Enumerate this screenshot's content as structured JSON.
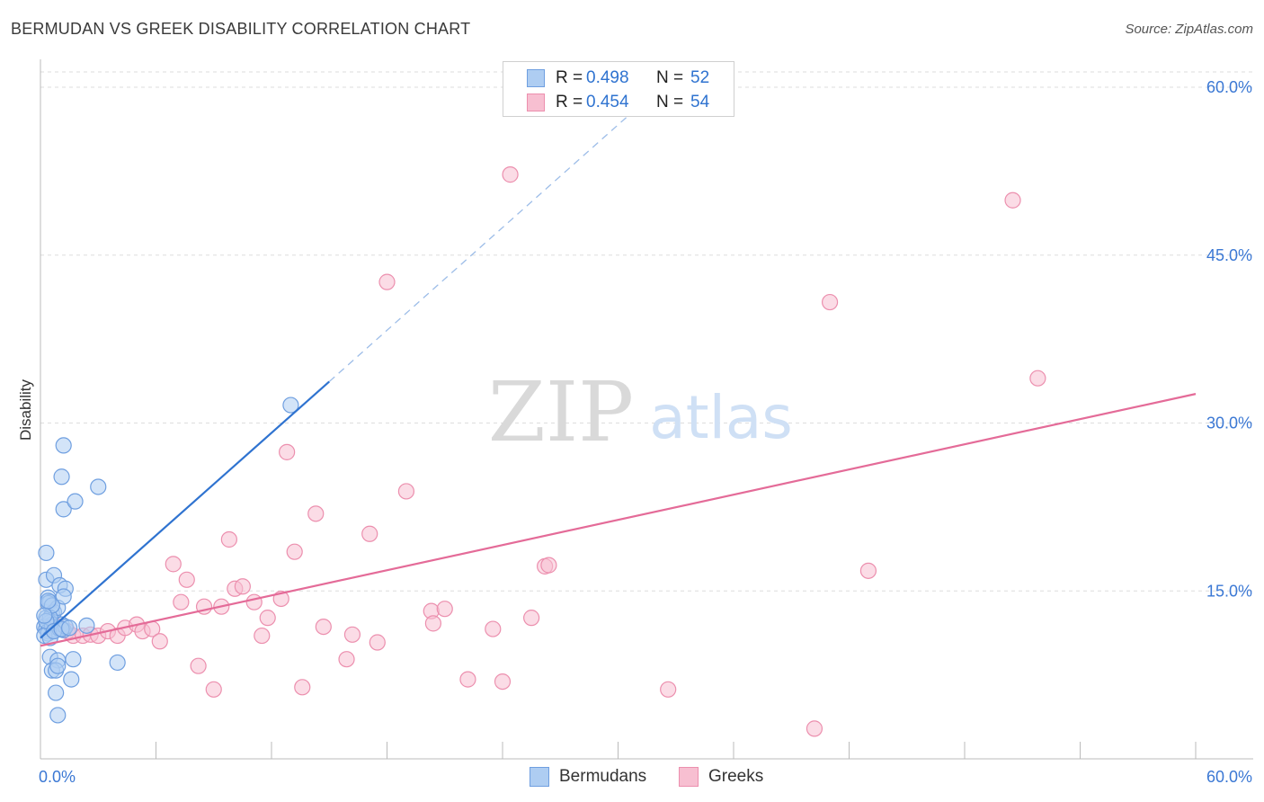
{
  "title": "BERMUDAN VS GREEK DISABILITY CORRELATION CHART",
  "source": "Source: ZipAtlas.com",
  "watermark": {
    "zip": "ZIP",
    "atlas": "atlas"
  },
  "legend": {
    "rows": [
      {
        "r_label": "R =",
        "r_value": "0.498",
        "n_label": "N =",
        "n_value": "52"
      },
      {
        "r_label": "R =",
        "r_value": "0.454",
        "n_label": "N =",
        "n_value": "54"
      }
    ]
  },
  "bottom_legend": {
    "series1": "Bermudans",
    "series2": "Greeks"
  },
  "colors": {
    "blue_fill": "#aecdf2",
    "blue_stroke": "#6f9fe0",
    "blue_line": "#2f73d0",
    "pink_fill": "#f7bfd1",
    "pink_stroke": "#ec8fae",
    "pink_line": "#e46b98",
    "tick_text": "#3b78d4",
    "grid": "#dddddd"
  },
  "chart_data": {
    "type": "scatter",
    "title": "BERMUDAN VS GREEK DISABILITY CORRELATION CHART",
    "xlabel": "",
    "ylabel": "Disability",
    "xlim": [
      0,
      60
    ],
    "ylim": [
      0,
      60
    ],
    "x_tick_labels": [
      "0.0%",
      "60.0%"
    ],
    "y_ticks": [
      15,
      30,
      45,
      60
    ],
    "y_tick_labels": [
      "15.0%",
      "30.0%",
      "45.0%",
      "60.0%"
    ],
    "grid": true,
    "series": [
      {
        "name": "Bermudans",
        "r": 0.498,
        "n": 52,
        "trend": {
          "x0": 0.0,
          "y0": 10.8,
          "x1": 15.0,
          "y1": 33.7,
          "dashed_to_x": 32.0,
          "dashed_to_y": 59.7
        },
        "points": [
          [
            0.3,
            18.4
          ],
          [
            0.3,
            16.0
          ],
          [
            0.4,
            14.4
          ],
          [
            0.5,
            14.0
          ],
          [
            0.4,
            13.9
          ],
          [
            0.6,
            13.0
          ],
          [
            0.7,
            13.1
          ],
          [
            0.3,
            12.6
          ],
          [
            0.5,
            12.2
          ],
          [
            0.6,
            12.0
          ],
          [
            0.2,
            11.8
          ],
          [
            0.3,
            11.6
          ],
          [
            0.4,
            11.4
          ],
          [
            0.4,
            11.2
          ],
          [
            0.6,
            11.8
          ],
          [
            0.8,
            11.5
          ],
          [
            0.2,
            11.0
          ],
          [
            0.5,
            10.8
          ],
          [
            0.9,
            13.5
          ],
          [
            1.0,
            11.6
          ],
          [
            1.1,
            12.0
          ],
          [
            1.2,
            11.5
          ],
          [
            1.3,
            11.8
          ],
          [
            0.7,
            16.4
          ],
          [
            1.0,
            15.5
          ],
          [
            1.3,
            15.2
          ],
          [
            1.2,
            14.5
          ],
          [
            1.1,
            25.2
          ],
          [
            1.2,
            22.3
          ],
          [
            1.2,
            28.0
          ],
          [
            1.8,
            23.0
          ],
          [
            3.0,
            24.3
          ],
          [
            2.4,
            11.9
          ],
          [
            0.5,
            9.1
          ],
          [
            0.9,
            8.8
          ],
          [
            1.7,
            8.9
          ],
          [
            0.6,
            7.9
          ],
          [
            0.8,
            7.9
          ],
          [
            0.9,
            8.3
          ],
          [
            1.6,
            7.1
          ],
          [
            0.8,
            5.9
          ],
          [
            0.9,
            3.9
          ],
          [
            4.0,
            8.6
          ],
          [
            13.0,
            31.6
          ],
          [
            0.5,
            12.6
          ],
          [
            0.6,
            13.7
          ],
          [
            0.3,
            12.3
          ],
          [
            0.2,
            12.8
          ],
          [
            0.7,
            11.4
          ],
          [
            1.1,
            11.6
          ],
          [
            1.5,
            11.7
          ],
          [
            0.4,
            14.1
          ]
        ]
      },
      {
        "name": "Greeks",
        "r": 0.454,
        "n": 54,
        "trend": {
          "x0": 0.0,
          "y0": 10.1,
          "x1": 60.0,
          "y1": 32.6
        },
        "points": [
          [
            0.9,
            11.8
          ],
          [
            1.4,
            11.4
          ],
          [
            1.7,
            11.0
          ],
          [
            2.2,
            11.0
          ],
          [
            2.6,
            11.1
          ],
          [
            3.0,
            11.0
          ],
          [
            3.5,
            11.4
          ],
          [
            4.0,
            11.0
          ],
          [
            4.4,
            11.7
          ],
          [
            5.0,
            12.0
          ],
          [
            5.3,
            11.4
          ],
          [
            5.8,
            11.6
          ],
          [
            6.2,
            10.5
          ],
          [
            6.9,
            17.4
          ],
          [
            7.3,
            14.0
          ],
          [
            7.6,
            16.0
          ],
          [
            8.2,
            8.3
          ],
          [
            8.5,
            13.6
          ],
          [
            9.0,
            6.2
          ],
          [
            9.8,
            19.6
          ],
          [
            10.1,
            15.2
          ],
          [
            10.5,
            15.4
          ],
          [
            11.1,
            14.0
          ],
          [
            11.5,
            11.0
          ],
          [
            11.8,
            12.6
          ],
          [
            12.5,
            14.3
          ],
          [
            12.8,
            27.4
          ],
          [
            13.2,
            18.5
          ],
          [
            13.6,
            6.4
          ],
          [
            14.3,
            21.9
          ],
          [
            14.7,
            11.8
          ],
          [
            15.9,
            8.9
          ],
          [
            16.2,
            11.1
          ],
          [
            17.1,
            20.1
          ],
          [
            17.5,
            10.4
          ],
          [
            18.0,
            42.6
          ],
          [
            19.0,
            23.9
          ],
          [
            20.3,
            13.2
          ],
          [
            20.4,
            12.1
          ],
          [
            21.0,
            13.4
          ],
          [
            22.2,
            7.1
          ],
          [
            23.5,
            11.6
          ],
          [
            24.0,
            6.9
          ],
          [
            24.4,
            52.2
          ],
          [
            25.5,
            12.6
          ],
          [
            26.2,
            17.2
          ],
          [
            26.4,
            17.3
          ],
          [
            32.6,
            6.2
          ],
          [
            40.2,
            2.7
          ],
          [
            41.0,
            40.8
          ],
          [
            43.0,
            16.8
          ],
          [
            50.5,
            49.9
          ],
          [
            51.8,
            34.0
          ],
          [
            9.4,
            13.6
          ]
        ]
      }
    ]
  }
}
